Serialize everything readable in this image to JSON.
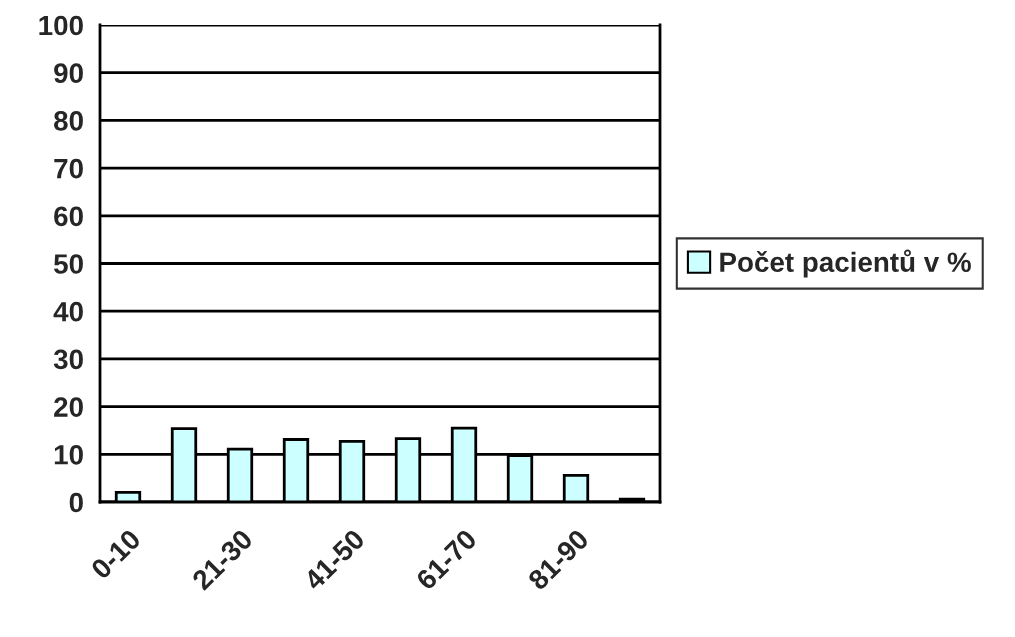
{
  "chart_data": {
    "type": "bar",
    "categories": [
      "0-10",
      null,
      "21-30",
      null,
      "41-50",
      null,
      "61-70",
      null,
      "81-90",
      null
    ],
    "series": [
      {
        "name": "Počet pacientů v %",
        "color": "#ccffff",
        "values": [
          2.0,
          15.4,
          11.1,
          13.1,
          12.7,
          13.3,
          15.5,
          9.7,
          5.6,
          0.6
        ]
      }
    ],
    "ylim": [
      0,
      100
    ],
    "yticks": [
      0,
      10,
      20,
      30,
      40,
      50,
      60,
      70,
      80,
      90,
      100
    ],
    "grid": "y",
    "legend": "right"
  }
}
